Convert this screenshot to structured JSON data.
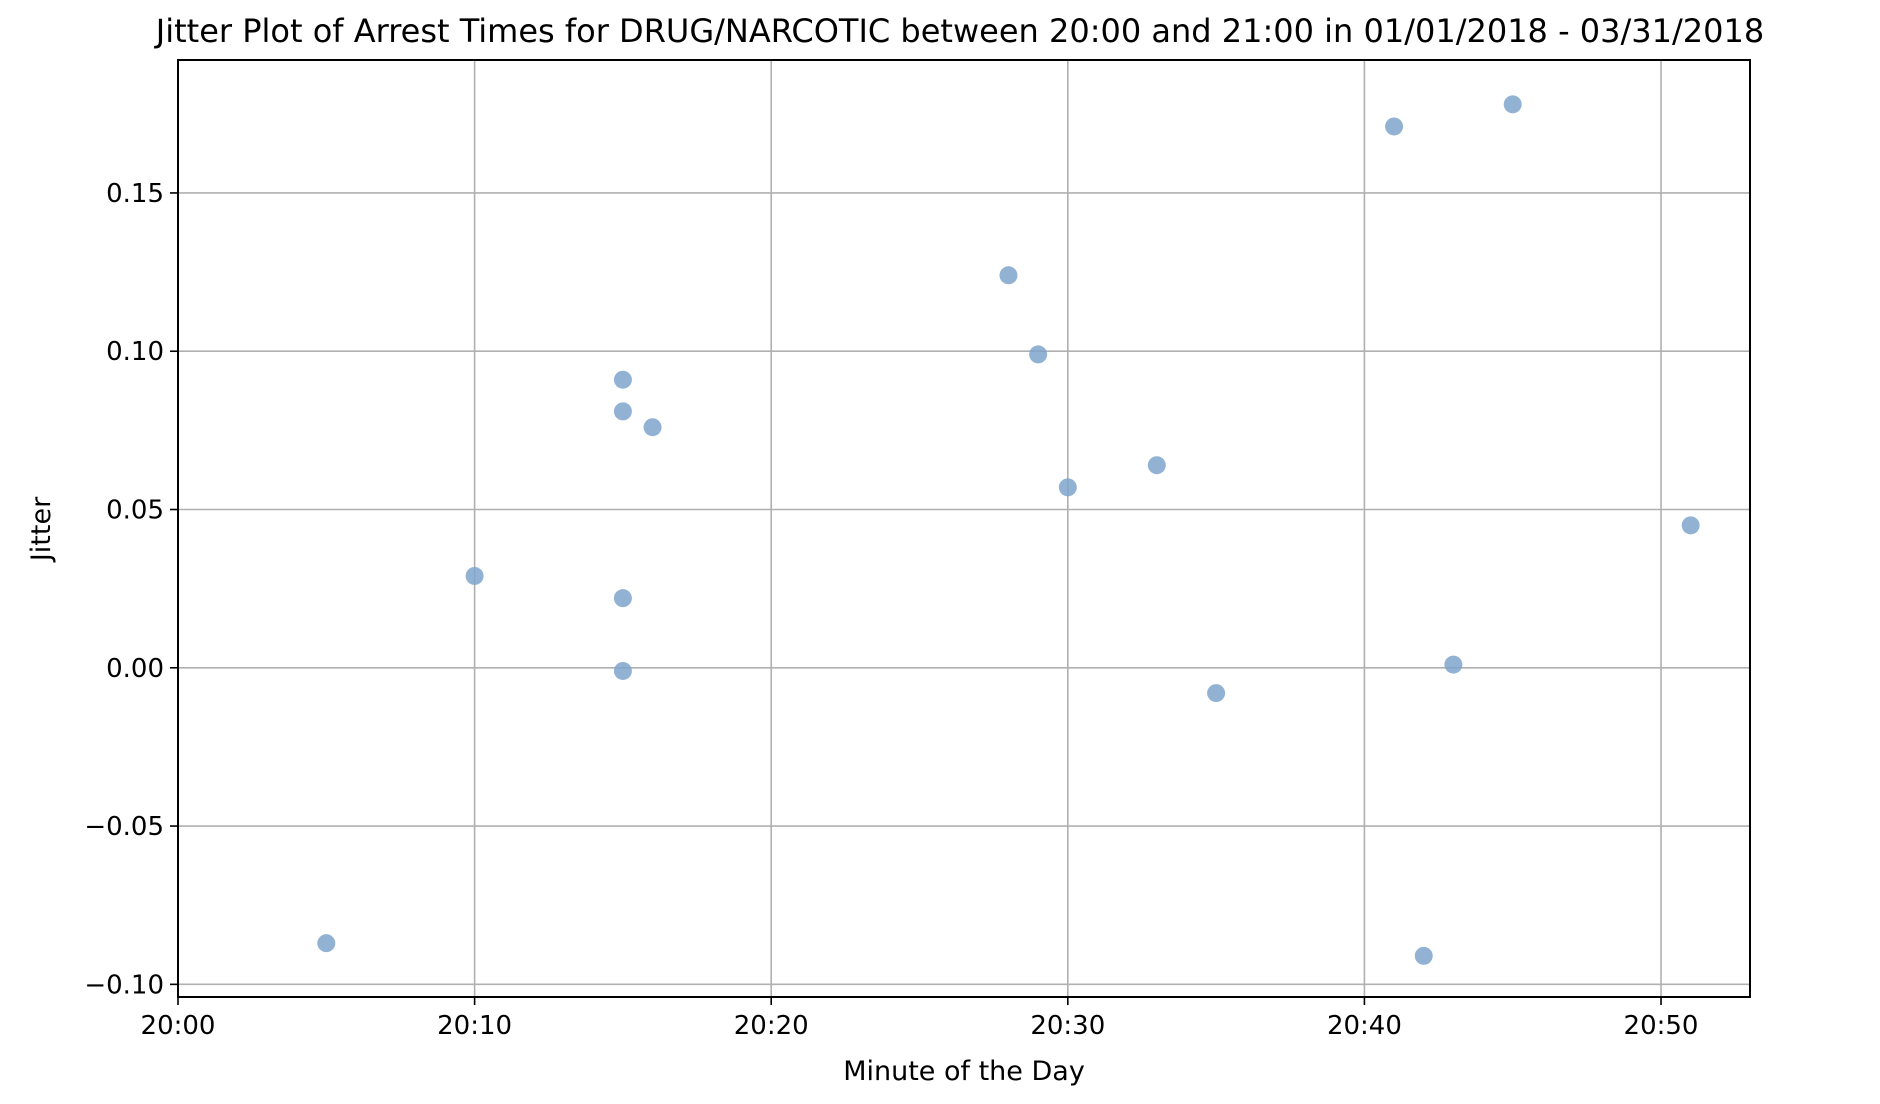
{
  "chart_data": {
    "type": "scatter",
    "title": "Jitter Plot of Arrest Times for DRUG/NARCOTIC between 20:00 and 21:00 in 01/01/2018 - 03/31/2018",
    "xlabel": "Minute of the Day",
    "ylabel": "Jitter",
    "xlim": [
      "20:00",
      "20:53"
    ],
    "ylim": [
      -0.104,
      0.192
    ],
    "xticks": [
      "20:00",
      "20:10",
      "20:20",
      "20:30",
      "20:40",
      "20:50"
    ],
    "yticks": [
      -0.1,
      -0.05,
      0.0,
      0.05,
      0.1,
      0.15
    ],
    "ytick_labels": [
      "−0.10",
      "−0.05",
      "0.00",
      "0.05",
      "0.10",
      "0.15"
    ],
    "grid": true,
    "marker_color": "#7fa5cc",
    "points": [
      {
        "x": "20:05",
        "y": -0.087
      },
      {
        "x": "20:10",
        "y": 0.029
      },
      {
        "x": "20:15",
        "y": 0.091
      },
      {
        "x": "20:15",
        "y": 0.081
      },
      {
        "x": "20:15",
        "y": 0.022
      },
      {
        "x": "20:15",
        "y": -0.001
      },
      {
        "x": "20:16",
        "y": 0.076
      },
      {
        "x": "20:28",
        "y": 0.124
      },
      {
        "x": "20:29",
        "y": 0.099
      },
      {
        "x": "20:30",
        "y": 0.057
      },
      {
        "x": "20:33",
        "y": 0.064
      },
      {
        "x": "20:35",
        "y": -0.008
      },
      {
        "x": "20:41",
        "y": 0.171
      },
      {
        "x": "20:42",
        "y": -0.091
      },
      {
        "x": "20:43",
        "y": 0.001
      },
      {
        "x": "20:45",
        "y": 0.178
      },
      {
        "x": "20:51",
        "y": 0.045
      }
    ]
  }
}
